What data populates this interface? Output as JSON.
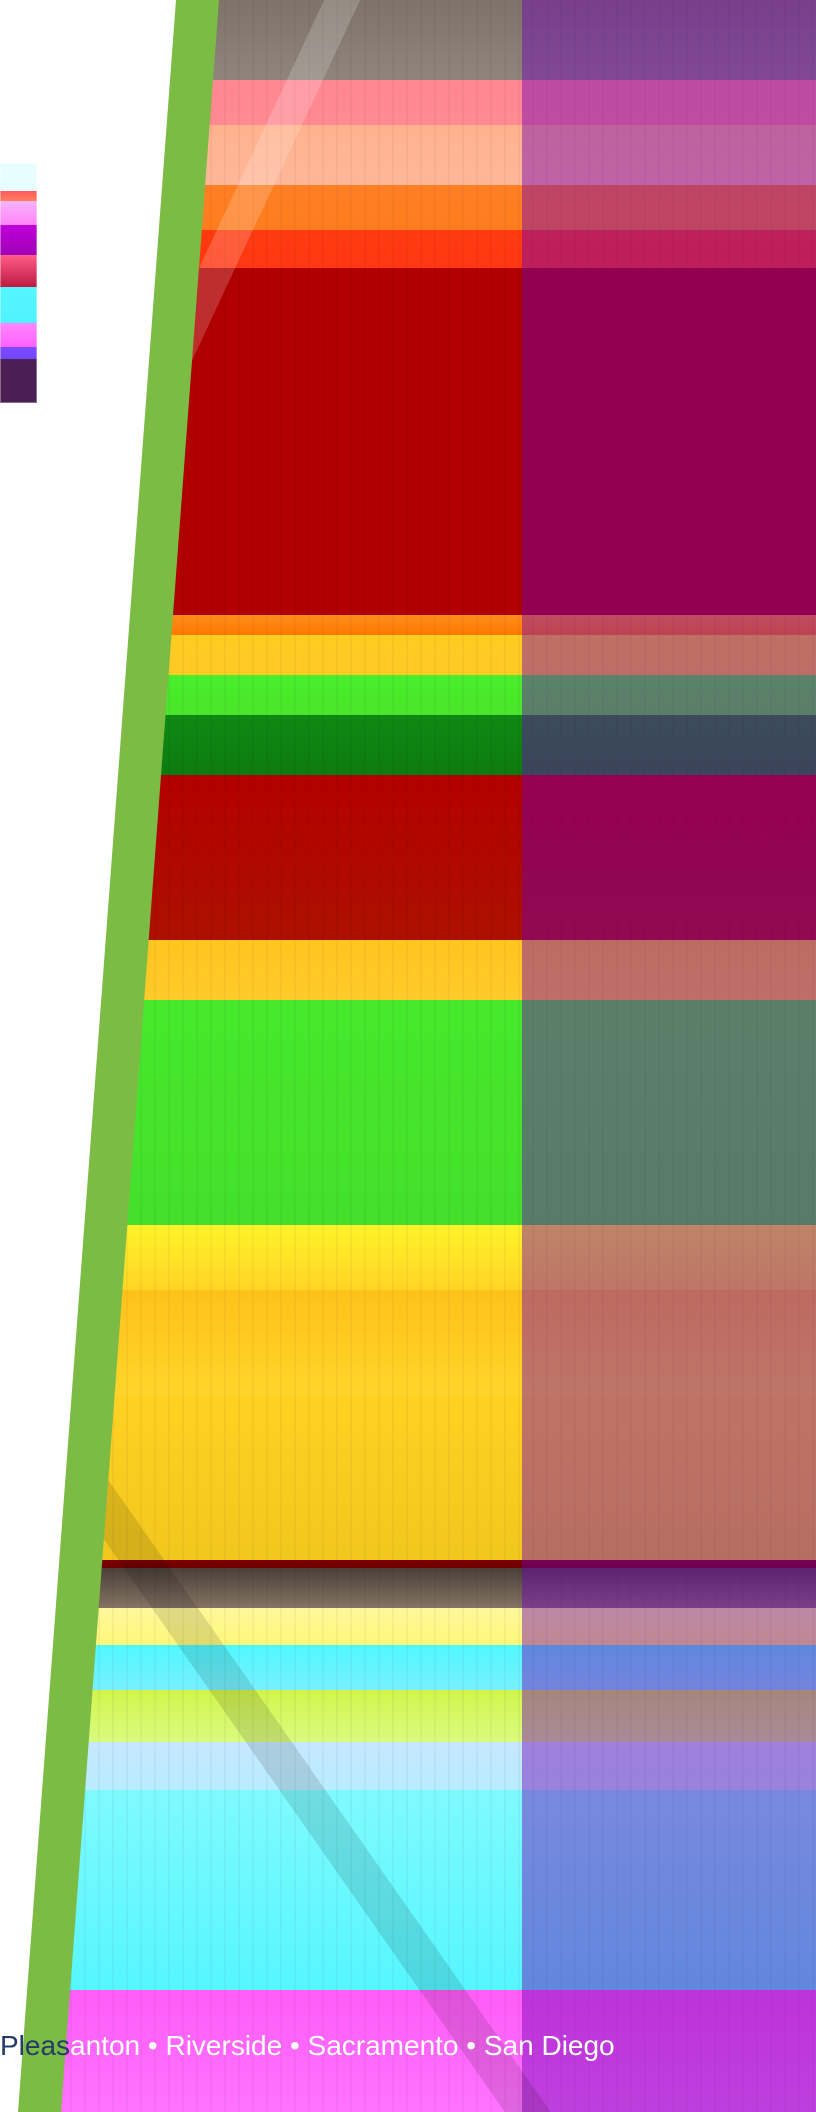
{
  "footer": {
    "first_fragment": "Pleas",
    "rest_fragment": "anton • Riverside • Sacramento • San Diego"
  }
}
